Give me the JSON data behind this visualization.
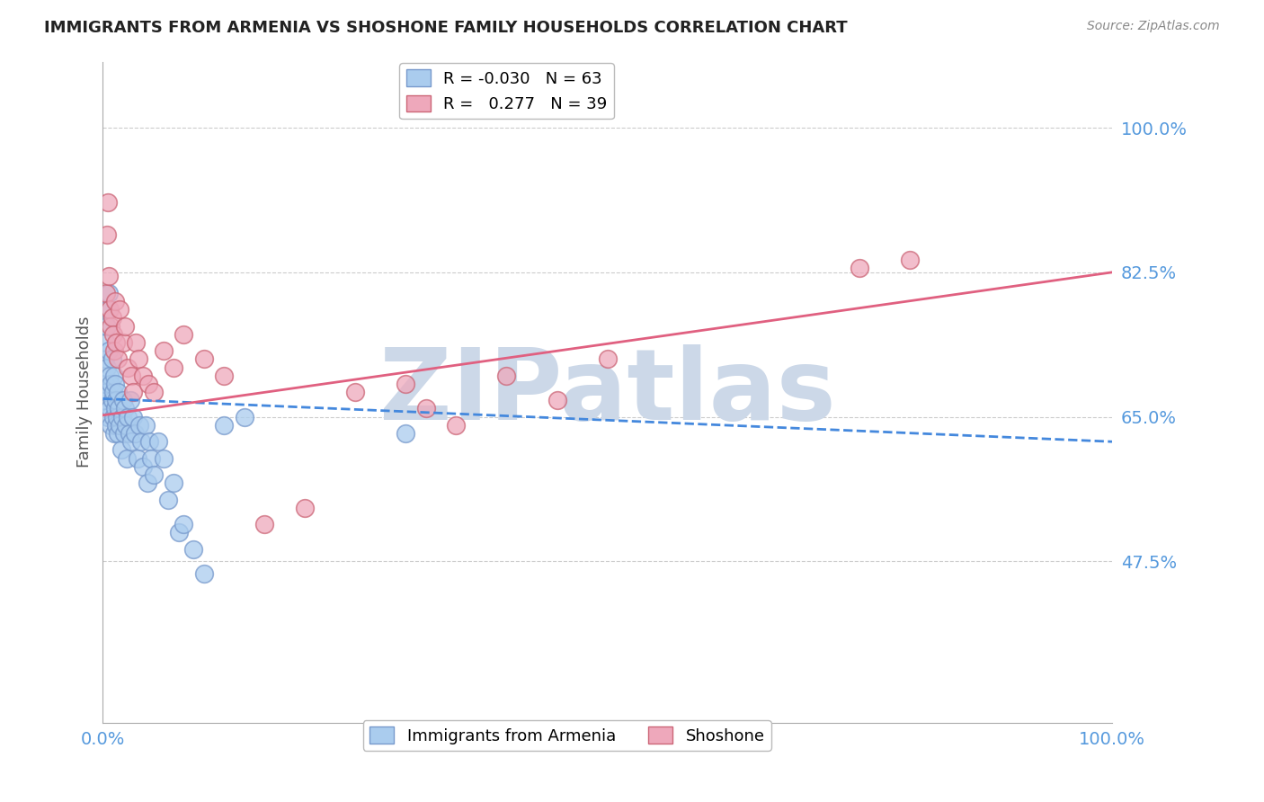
{
  "title": "IMMIGRANTS FROM ARMENIA VS SHOSHONE FAMILY HOUSEHOLDS CORRELATION CHART",
  "source": "Source: ZipAtlas.com",
  "ylabel": "Family Households",
  "y_tick_values": [
    0.475,
    0.65,
    0.825,
    1.0
  ],
  "xlim": [
    0.0,
    1.0
  ],
  "ylim": [
    0.28,
    1.08
  ],
  "title_color": "#222222",
  "source_color": "#888888",
  "axis_color": "#5599dd",
  "grid_color": "#cccccc",
  "watermark_text": "ZIPatlas",
  "watermark_color": "#ccd8e8",
  "blue_line_color": "#4488dd",
  "pink_line_color": "#e06080",
  "blue_scatter_color": "#aaccee",
  "pink_scatter_color": "#eea8bb",
  "blue_scatter_edge": "#7799cc",
  "pink_scatter_edge": "#cc6677",
  "armenia_x": [
    0.001,
    0.002,
    0.002,
    0.003,
    0.003,
    0.004,
    0.004,
    0.005,
    0.005,
    0.006,
    0.006,
    0.007,
    0.007,
    0.008,
    0.008,
    0.009,
    0.009,
    0.01,
    0.01,
    0.011,
    0.011,
    0.012,
    0.012,
    0.013,
    0.013,
    0.014,
    0.015,
    0.015,
    0.016,
    0.017,
    0.018,
    0.019,
    0.02,
    0.021,
    0.022,
    0.023,
    0.024,
    0.025,
    0.026,
    0.027,
    0.028,
    0.03,
    0.032,
    0.034,
    0.036,
    0.038,
    0.04,
    0.042,
    0.044,
    0.046,
    0.048,
    0.05,
    0.055,
    0.06,
    0.065,
    0.07,
    0.075,
    0.08,
    0.09,
    0.1,
    0.12,
    0.14,
    0.3
  ],
  "armenia_y": [
    0.67,
    0.72,
    0.69,
    0.74,
    0.68,
    0.76,
    0.71,
    0.78,
    0.65,
    0.8,
    0.73,
    0.66,
    0.7,
    0.69,
    0.64,
    0.67,
    0.72,
    0.65,
    0.68,
    0.63,
    0.7,
    0.66,
    0.69,
    0.64,
    0.67,
    0.65,
    0.68,
    0.63,
    0.66,
    0.64,
    0.61,
    0.65,
    0.67,
    0.63,
    0.66,
    0.64,
    0.6,
    0.65,
    0.63,
    0.67,
    0.62,
    0.65,
    0.63,
    0.6,
    0.64,
    0.62,
    0.59,
    0.64,
    0.57,
    0.62,
    0.6,
    0.58,
    0.62,
    0.6,
    0.55,
    0.57,
    0.51,
    0.52,
    0.49,
    0.46,
    0.64,
    0.65,
    0.63
  ],
  "shoshone_x": [
    0.003,
    0.004,
    0.005,
    0.006,
    0.007,
    0.008,
    0.009,
    0.01,
    0.011,
    0.012,
    0.013,
    0.015,
    0.017,
    0.02,
    0.022,
    0.025,
    0.028,
    0.03,
    0.033,
    0.035,
    0.04,
    0.045,
    0.05,
    0.06,
    0.07,
    0.08,
    0.1,
    0.12,
    0.16,
    0.2,
    0.25,
    0.3,
    0.32,
    0.35,
    0.4,
    0.45,
    0.5,
    0.75,
    0.8
  ],
  "shoshone_y": [
    0.8,
    0.87,
    0.91,
    0.82,
    0.78,
    0.76,
    0.77,
    0.75,
    0.73,
    0.79,
    0.74,
    0.72,
    0.78,
    0.74,
    0.76,
    0.71,
    0.7,
    0.68,
    0.74,
    0.72,
    0.7,
    0.69,
    0.68,
    0.73,
    0.71,
    0.75,
    0.72,
    0.7,
    0.52,
    0.54,
    0.68,
    0.69,
    0.66,
    0.64,
    0.7,
    0.67,
    0.72,
    0.83,
    0.84
  ],
  "arm_line_x0": 0.0,
  "arm_line_y0": 0.672,
  "arm_line_x1": 1.0,
  "arm_line_y1": 0.62,
  "sho_line_x0": 0.0,
  "sho_line_y0": 0.652,
  "sho_line_x1": 1.0,
  "sho_line_y1": 0.825
}
